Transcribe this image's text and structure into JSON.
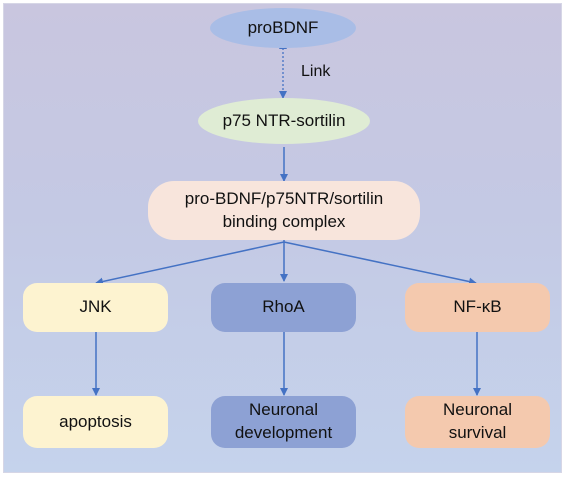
{
  "nodes": {
    "probdnf": "proBDNF",
    "p75_sortilin": "p75 NTR-sortilin",
    "complex": "pro-BDNF/p75NTR/sortilin binding complex",
    "jnk": "JNK",
    "rhoa": "RhoA",
    "nfkb": "NF-κB",
    "apoptosis": "apoptosis",
    "neuronal_development": "Neuronal development",
    "neuronal_survival": "Neuronal survival"
  },
  "edge_labels": {
    "link": "Link"
  },
  "colors": {
    "probdnf": "#a9bde6",
    "p75_sortilin": "#dfecd4",
    "complex": "#f8e5dc",
    "jnk": "#fdf3d0",
    "rhoa": "#8da1d4",
    "nfkb": "#f4c9ae",
    "apoptosis": "#fdf3d0",
    "neuronal_development": "#8da1d4",
    "neuronal_survival": "#f4c9ae",
    "arrow": "#4472c4"
  }
}
